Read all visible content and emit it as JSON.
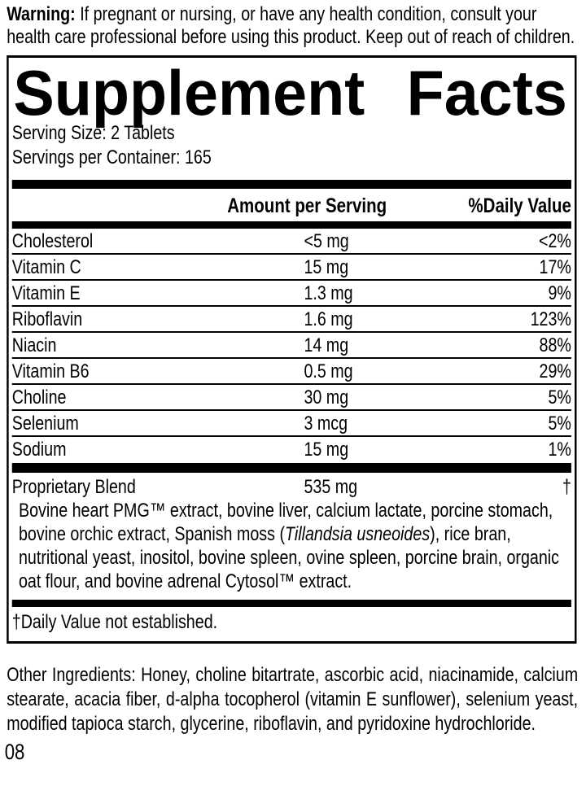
{
  "colors": {
    "text": "#000000",
    "background": "#ffffff",
    "rule": "#000000"
  },
  "warning": {
    "label": "Warning:",
    "text": " If pregnant or nursing, or have any health condition, consult your health care professional before using this product. Keep out of reach of children."
  },
  "supplement_facts": {
    "title": {
      "word1": "Supplement",
      "word2": "Facts"
    },
    "serving_size": "Serving Size: 2 Tablets",
    "servings_per_container": "Servings per Container: 165",
    "columns": {
      "amount": "Amount per Serving",
      "daily_value": "%Daily Value"
    },
    "nutrients": [
      {
        "name": "Cholesterol",
        "amount": "<5 mg",
        "daily_value": "<2%"
      },
      {
        "name": "Vitamin C",
        "amount": "15 mg",
        "daily_value": "17%"
      },
      {
        "name": "Vitamin E",
        "amount": "1.3 mg",
        "daily_value": "9%"
      },
      {
        "name": "Riboflavin",
        "amount": "1.6 mg",
        "daily_value": "123%"
      },
      {
        "name": "Niacin",
        "amount": "14 mg",
        "daily_value": "88%"
      },
      {
        "name": "Vitamin B6",
        "amount": "0.5 mg",
        "daily_value": "29%"
      },
      {
        "name": "Choline",
        "amount": "30 mg",
        "daily_value": "5%"
      },
      {
        "name": "Selenium",
        "amount": "3 mcg",
        "daily_value": "5%"
      },
      {
        "name": "Sodium",
        "amount": "15 mg",
        "daily_value": "1%"
      }
    ],
    "proprietary_blend": {
      "name": "Proprietary Blend",
      "amount": "535 mg",
      "daily_value": "†",
      "description_prefix": "Bovine heart PMG™ extract, bovine liver, calcium lactate, porcine stomach, bovine orchic extract, Spanish moss (",
      "description_italic": "Tillandsia usneoides",
      "description_suffix": "), rice bran, nutritional yeast, inositol, bovine spleen, ovine spleen, porcine brain, organic oat flour, and bovine adrenal Cytosol™ extract."
    },
    "footnote": "†Daily Value not established."
  },
  "other_ingredients": "Other Ingredients: Honey, choline bitartrate, ascorbic acid, niacinamide, calcium stearate, acacia fiber, d-alpha tocopherol (vitamin E sunflower), selenium yeast, modified tapioca starch, glycerine, riboflavin, and pyridoxine hydrochloride.",
  "page_code": "08"
}
